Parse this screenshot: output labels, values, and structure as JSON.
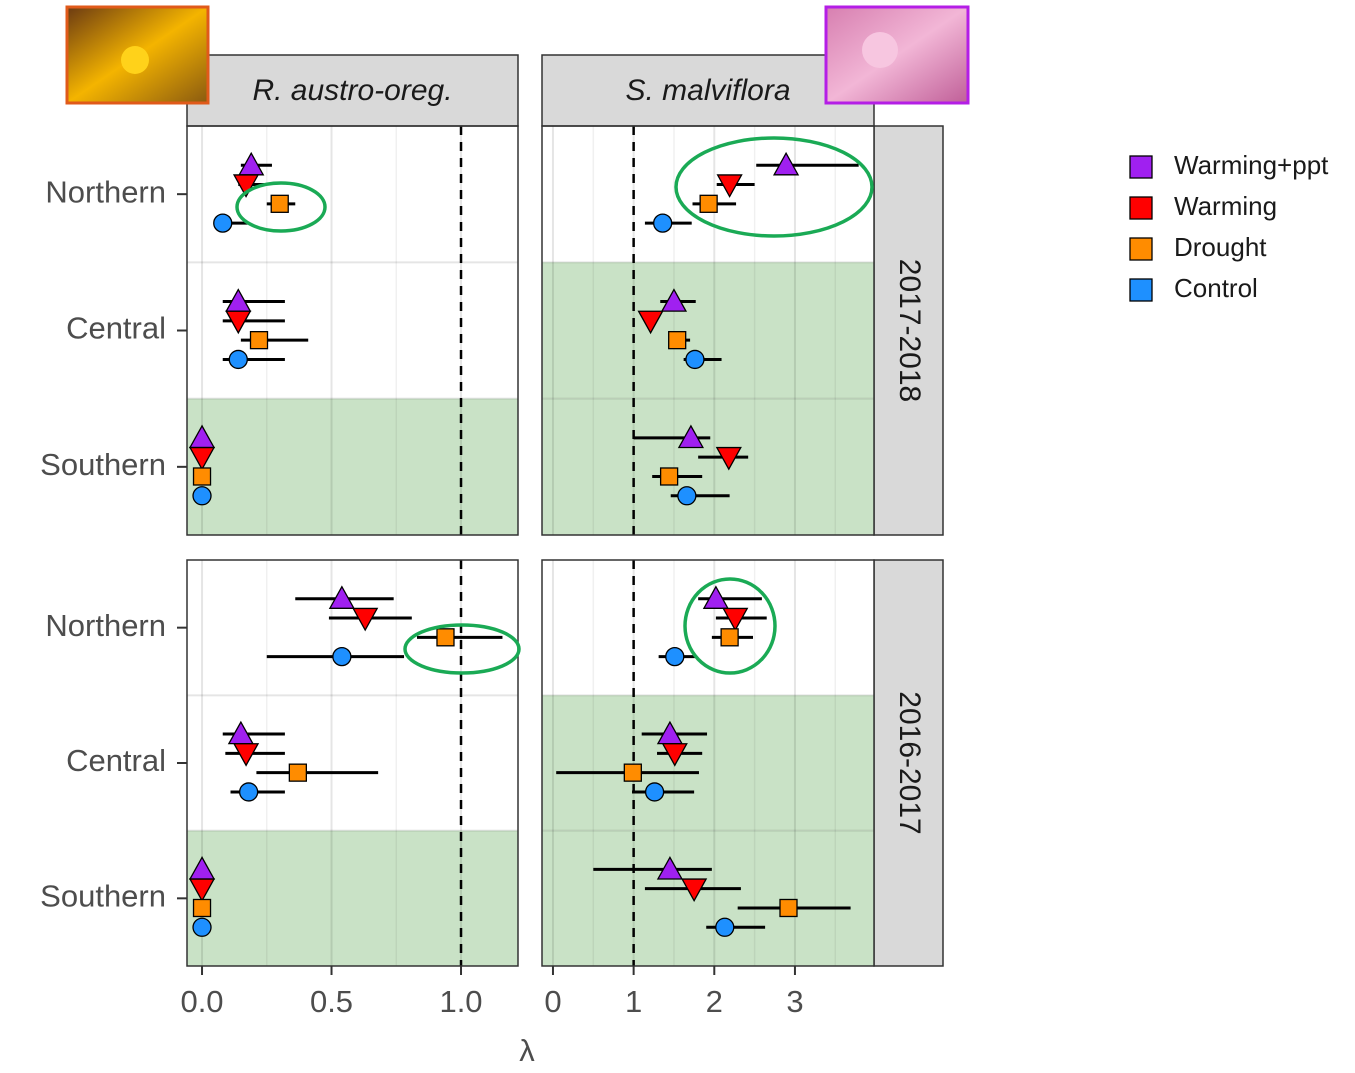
{
  "chart_data": {
    "type": "dotplot",
    "xlabel": "λ",
    "ref_line": 1,
    "categories": [
      "Northern",
      "Central",
      "Southern"
    ],
    "series": [
      {
        "name": "Warming+ppt",
        "color": "#a020f0",
        "shape": "triangle-up"
      },
      {
        "name": "Warming",
        "color": "#ff0000",
        "shape": "triangle-down"
      },
      {
        "name": "Drought",
        "color": "#ff8c00",
        "shape": "square"
      },
      {
        "name": "Control",
        "color": "#1e90ff",
        "shape": "circle"
      }
    ],
    "columns": [
      {
        "title": "R. austro-oreg.",
        "xlim": [
          -0.058,
          1.22
        ],
        "xticks": [
          {
            "value": 0,
            "label": "0.0"
          },
          0.5,
          {
            "value": 1,
            "label": "1.0"
          }
        ]
      },
      {
        "title": "S. malviflora",
        "xlim": [
          -0.136,
          3.98
        ],
        "xticks": [
          0,
          1,
          2,
          3
        ]
      }
    ],
    "rows": [
      {
        "label": "2017-2018",
        "panels": [
          {
            "shaded": [
              false,
              false,
              true
            ],
            "series": [
              {
                "values": [
                  0.19,
                  0.14,
                  0
                ],
                "lower": [
                  0.15,
                  0.08,
                  null
                ],
                "upper": [
                  0.27,
                  0.32,
                  null
                ]
              },
              {
                "values": [
                  0.17,
                  0.14,
                  0
                ],
                "lower": [
                  0.14,
                  0.08,
                  null
                ],
                "upper": [
                  0.25,
                  0.32,
                  null
                ]
              },
              {
                "values": [
                  0.3,
                  0.22,
                  0
                ],
                "lower": [
                  0.25,
                  0.15,
                  null
                ],
                "upper": [
                  0.36,
                  0.41,
                  null
                ]
              },
              {
                "values": [
                  0.08,
                  0.14,
                  0
                ],
                "lower": [
                  0.05,
                  0.08,
                  null
                ],
                "upper": [
                  0.18,
                  0.32,
                  null
                ]
              }
            ]
          },
          {
            "shaded": [
              false,
              true,
              true
            ],
            "series": [
              {
                "values": [
                  2.89,
                  1.5,
                  1.71
                ],
                "lower": [
                  2.52,
                  1.33,
                  1.0
                ],
                "upper": [
                  3.79,
                  1.77,
                  1.95
                ]
              },
              {
                "values": [
                  2.19,
                  1.21,
                  2.18
                ],
                "lower": [
                  2.03,
                  null,
                  1.8
                ],
                "upper": [
                  2.5,
                  null,
                  2.42
                ]
              },
              {
                "values": [
                  1.93,
                  1.54,
                  1.44
                ],
                "lower": [
                  1.73,
                  1.44,
                  1.23
                ],
                "upper": [
                  2.27,
                  1.7,
                  1.85
                ]
              },
              {
                "values": [
                  1.36,
                  1.76,
                  1.66
                ],
                "lower": [
                  1.14,
                  1.62,
                  1.46
                ],
                "upper": [
                  1.72,
                  2.09,
                  2.19
                ]
              }
            ]
          }
        ]
      },
      {
        "label": "2016-2017",
        "panels": [
          {
            "shaded": [
              false,
              false,
              true
            ],
            "series": [
              {
                "values": [
                  0.54,
                  0.15,
                  0
                ],
                "lower": [
                  0.36,
                  0.08,
                  null
                ],
                "upper": [
                  0.74,
                  0.32,
                  null
                ]
              },
              {
                "values": [
                  0.63,
                  0.17,
                  0
                ],
                "lower": [
                  0.49,
                  0.09,
                  null
                ],
                "upper": [
                  0.81,
                  0.32,
                  null
                ]
              },
              {
                "values": [
                  0.94,
                  0.37,
                  0
                ],
                "lower": [
                  0.83,
                  0.21,
                  null
                ],
                "upper": [
                  1.16,
                  0.68,
                  null
                ]
              },
              {
                "values": [
                  0.54,
                  0.18,
                  0
                ],
                "lower": [
                  0.25,
                  0.11,
                  null
                ],
                "upper": [
                  0.78,
                  0.32,
                  null
                ]
              }
            ]
          },
          {
            "shaded": [
              false,
              true,
              true
            ],
            "series": [
              {
                "values": [
                  2.02,
                  1.45,
                  1.45
                ],
                "lower": [
                  1.8,
                  1.1,
                  0.5
                ],
                "upper": [
                  2.59,
                  1.91,
                  1.97
                ]
              },
              {
                "values": [
                  2.26,
                  1.51,
                  1.75
                ],
                "lower": [
                  2.02,
                  1.29,
                  1.14
                ],
                "upper": [
                  2.65,
                  1.85,
                  2.33
                ]
              },
              {
                "values": [
                  2.19,
                  0.99,
                  2.92
                ],
                "lower": [
                  1.97,
                  0.04,
                  2.29
                ],
                "upper": [
                  2.48,
                  1.81,
                  3.69
                ]
              },
              {
                "values": [
                  1.51,
                  1.26,
                  2.13
                ],
                "lower": [
                  1.31,
                  0.98,
                  1.9
                ],
                "upper": [
                  1.78,
                  1.75,
                  2.63
                ]
              }
            ]
          }
        ]
      }
    ]
  }
}
